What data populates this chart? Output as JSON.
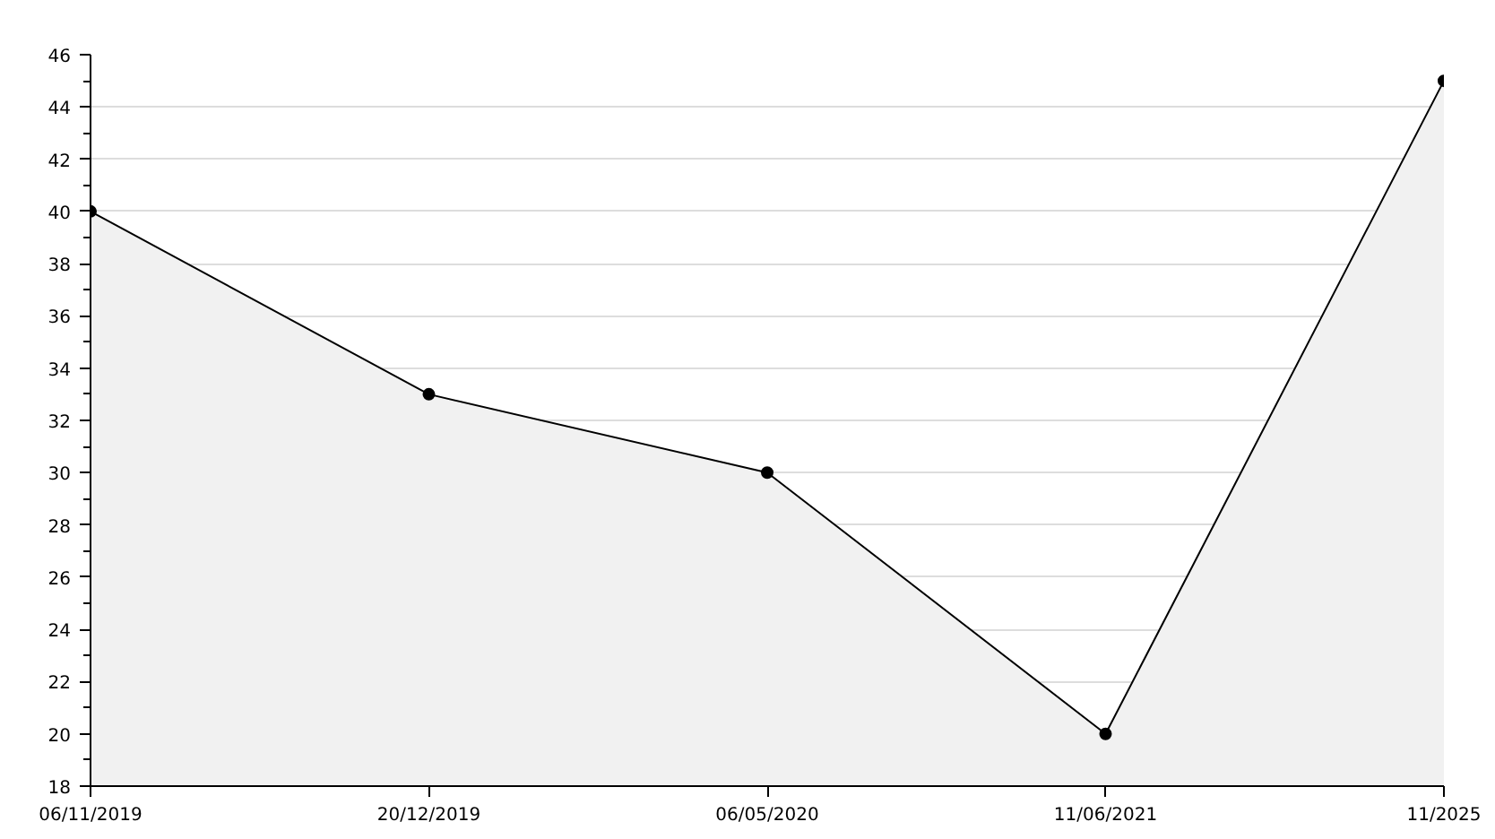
{
  "chart_data": {
    "type": "area",
    "categories": [
      "06/11/2019",
      "20/12/2019",
      "06/05/2020",
      "11/06/2021",
      "11/2025"
    ],
    "series": [
      {
        "color": "#000000",
        "values": [
          40,
          33,
          30,
          20,
          45
        ]
      }
    ],
    "ylim": [
      18,
      46
    ],
    "yticks": [
      18,
      20,
      22,
      24,
      26,
      28,
      30,
      32,
      34,
      36,
      38,
      40,
      42,
      44,
      46
    ],
    "grid": "y",
    "marker": "circle",
    "line_style": "solid"
  }
}
